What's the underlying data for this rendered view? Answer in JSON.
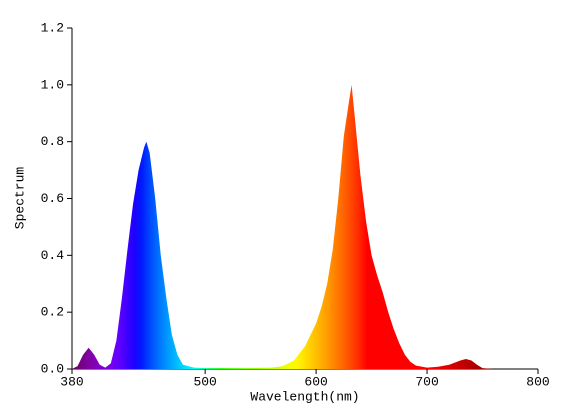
{
  "chart_data": {
    "type": "area",
    "x_label": "Wavelength(nm)",
    "y_label": "Spectrum",
    "fill": "wavelength",
    "x": [
      380,
      385,
      390,
      395,
      400,
      405,
      410,
      415,
      420,
      425,
      430,
      435,
      440,
      445,
      447,
      450,
      455,
      460,
      465,
      470,
      475,
      480,
      490,
      500,
      520,
      540,
      560,
      570,
      580,
      590,
      600,
      605,
      610,
      615,
      620,
      625,
      630,
      632,
      635,
      640,
      645,
      650,
      655,
      660,
      665,
      670,
      675,
      680,
      685,
      690,
      700,
      710,
      720,
      730,
      735,
      740,
      745,
      750,
      760
    ],
    "values": [
      0,
      0.01,
      0.05,
      0.075,
      0.05,
      0.015,
      0.005,
      0.02,
      0.1,
      0.25,
      0.42,
      0.58,
      0.7,
      0.78,
      0.8,
      0.76,
      0.6,
      0.4,
      0.25,
      0.12,
      0.05,
      0.015,
      0.005,
      0.003,
      0.003,
      0.003,
      0.005,
      0.01,
      0.03,
      0.08,
      0.16,
      0.22,
      0.3,
      0.42,
      0.6,
      0.82,
      0.95,
      1.0,
      0.88,
      0.68,
      0.52,
      0.4,
      0.33,
      0.27,
      0.2,
      0.14,
      0.09,
      0.05,
      0.025,
      0.012,
      0.005,
      0.008,
      0.015,
      0.03,
      0.035,
      0.03,
      0.015,
      0.003,
      0
    ],
    "xlim": [
      380,
      800
    ],
    "xticks": [
      380,
      500,
      600,
      700,
      800
    ],
    "ylim": [
      0,
      1.2
    ],
    "yticks": [
      {
        "value": 0,
        "label": "0.0"
      },
      0.2,
      0.4,
      0.6,
      0.8,
      {
        "value": 1,
        "label": "1.0"
      },
      1.2
    ]
  }
}
